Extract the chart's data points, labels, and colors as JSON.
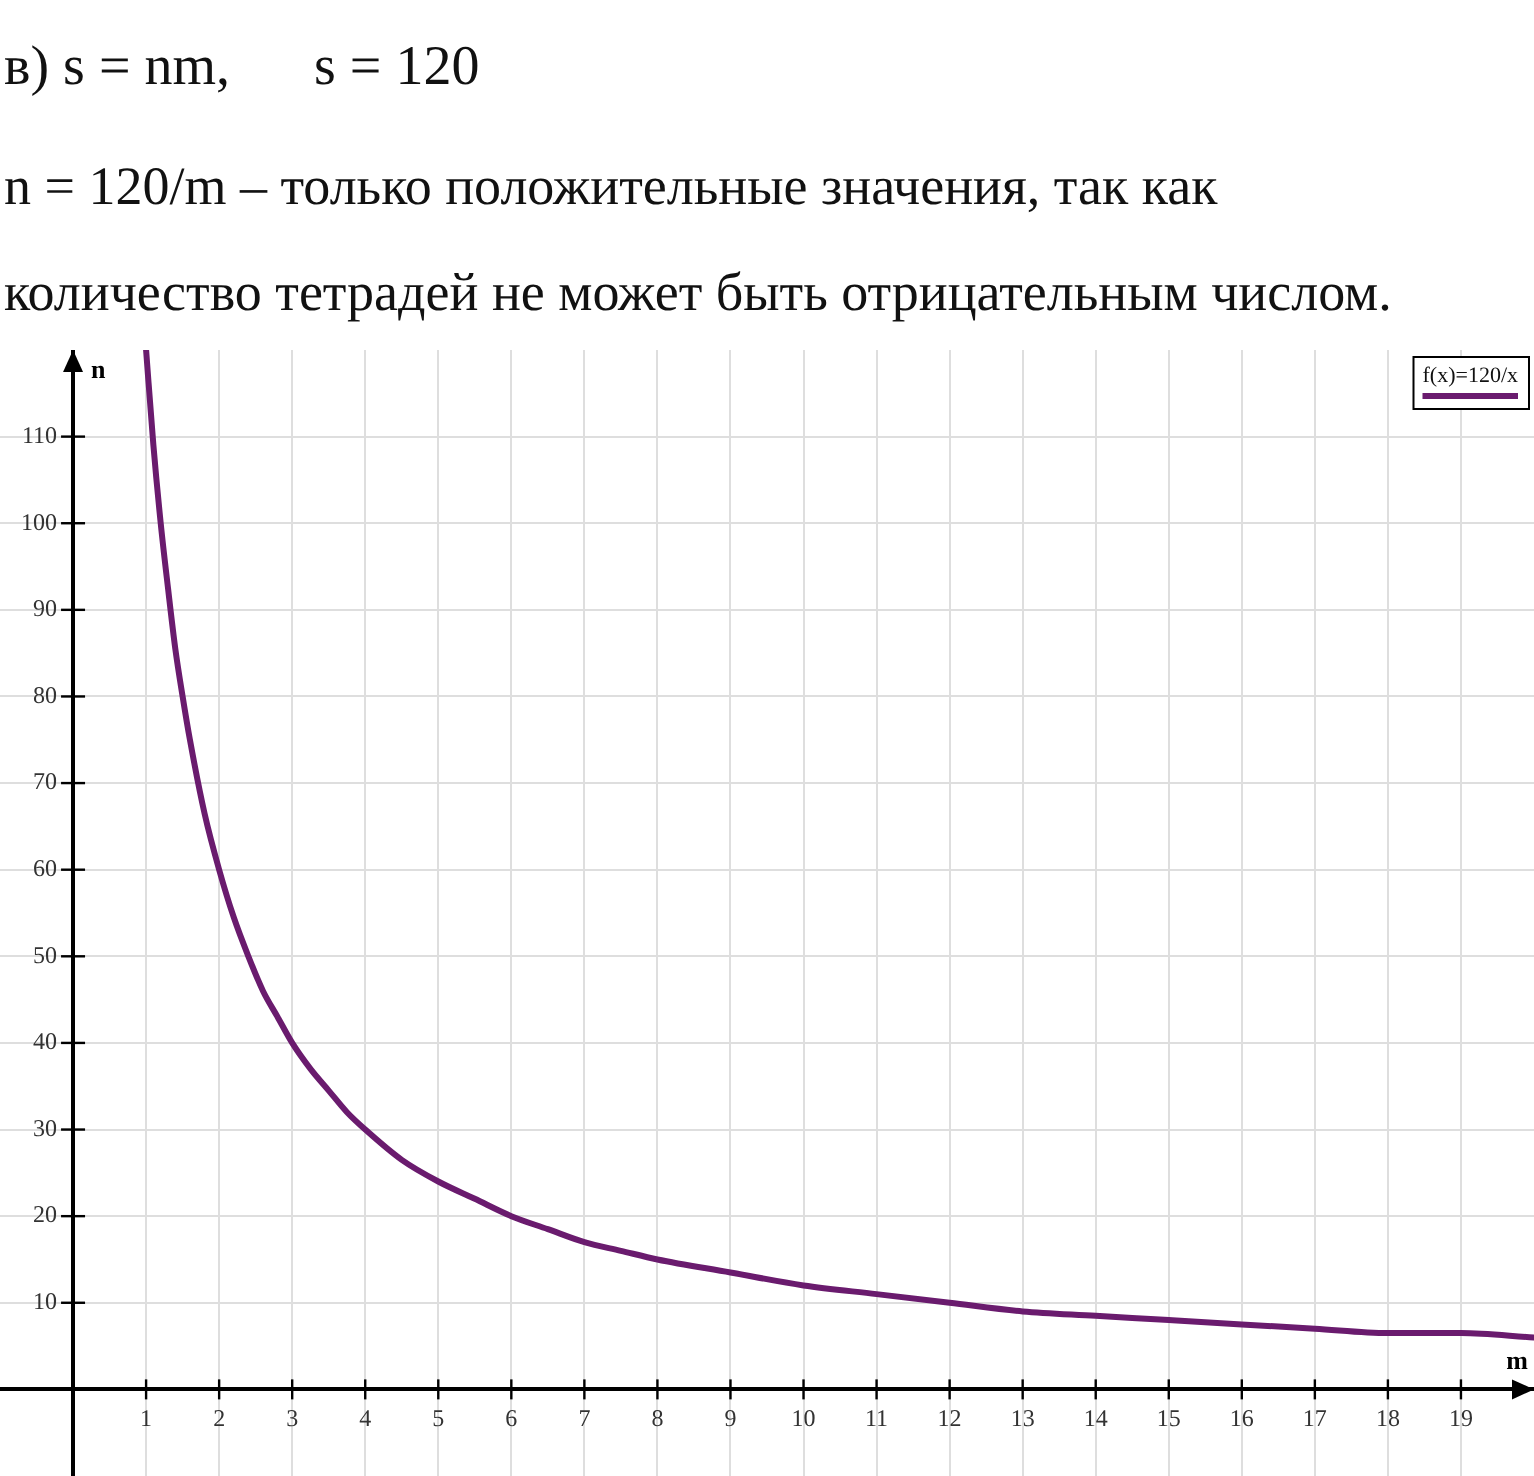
{
  "chart_data": {
    "type": "line",
    "title": "в) s = nm,      s = 120",
    "subtitle": "n = 120/m – только положительные значения, так как количество тетрадей не может быть отрицательным числом.",
    "xlabel": "m",
    "ylabel": "n",
    "x": [
      1,
      1.1,
      1.2,
      1.3,
      1.4,
      1.5,
      1.6,
      1.8,
      2,
      2.2,
      2.4,
      2.6,
      2.8,
      3,
      3.25,
      3.5,
      3.75,
      4,
      4.5,
      5,
      5.5,
      6,
      6.5,
      7,
      7.5,
      8,
      9,
      10,
      11,
      12,
      13,
      14,
      15,
      16,
      17,
      18,
      19,
      20
    ],
    "series": [
      {
        "name": "f(x)=120/x",
        "color": "#6a1b6e",
        "values": [
          120,
          109,
          100,
          92.5,
          85.5,
          80,
          75,
          66.5,
          60,
          54.5,
          50,
          46,
          43,
          40,
          37,
          34.5,
          32,
          30,
          26.5,
          24,
          22,
          20,
          18.5,
          17,
          16,
          15,
          13.5,
          12,
          11,
          10,
          9,
          8.5,
          8,
          7.5,
          7,
          6.5,
          6.5,
          6
        ]
      }
    ],
    "xlim": [
      -1,
      20
    ],
    "ylim": [
      -10,
      120
    ],
    "xticks": [
      1,
      2,
      3,
      4,
      5,
      6,
      7,
      8,
      9,
      10,
      11,
      12,
      13,
      14,
      15,
      16,
      17,
      18,
      19
    ],
    "yticks": [
      10,
      20,
      30,
      40,
      50,
      60,
      70,
      80,
      90,
      100,
      110
    ],
    "grid": true,
    "legend": "top right",
    "marker": "none",
    "line_style": "solid"
  }
}
